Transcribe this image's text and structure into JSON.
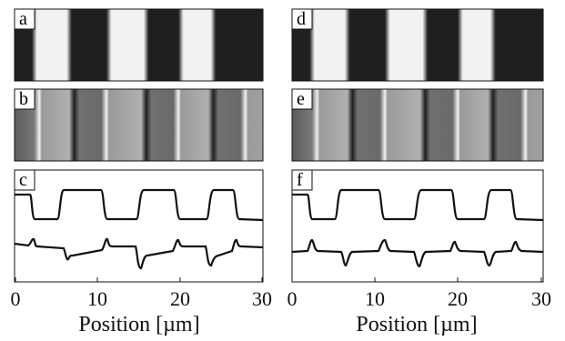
{
  "figure": {
    "panels": [
      {
        "letter": "a",
        "kind": "image-binary"
      },
      {
        "letter": "b",
        "kind": "image-gradient"
      },
      {
        "letter": "c",
        "kind": "profile-plot"
      },
      {
        "letter": "d",
        "kind": "image-binary"
      },
      {
        "letter": "e",
        "kind": "image-gradient"
      },
      {
        "letter": "f",
        "kind": "profile-plot"
      }
    ],
    "x_axis": {
      "label": "Position [µm]",
      "ticks": [
        "0",
        "10",
        "20",
        "30"
      ]
    }
  },
  "chart_data": [
    {
      "panel": "c",
      "type": "line",
      "xlabel": "Position [µm]",
      "ylabel": "",
      "xlim": [
        0,
        30
      ],
      "x_ticks": [
        0,
        10,
        20,
        30
      ],
      "y_ticks": [],
      "series": [
        {
          "values_note": "square-wave intensity profile",
          "x": [
            0,
            1.8,
            2.2,
            6.0,
            6.4,
            11.0,
            11.4,
            14.8,
            15.2,
            19.6,
            20.0,
            23.2,
            23.6,
            26.6,
            27.0,
            30
          ],
          "y": [
            0.78,
            0.78,
            0.38,
            0.38,
            0.9,
            0.9,
            0.38,
            0.38,
            0.9,
            0.9,
            0.38,
            0.38,
            0.9,
            0.9,
            0.38,
            0.38
          ]
        },
        {
          "values_note": "derivative-like edge profile",
          "x": [
            0,
            2.0,
            6.2,
            11.2,
            15.0,
            19.8,
            23.4,
            26.8,
            30
          ],
          "y": [
            0.12,
            0.22,
            -0.08,
            0.22,
            -0.08,
            0.22,
            -0.08,
            0.2,
            0.12
          ]
        }
      ]
    },
    {
      "panel": "f",
      "type": "line",
      "xlabel": "Position [µm]",
      "ylabel": "",
      "xlim": [
        0,
        30
      ],
      "x_ticks": [
        0,
        10,
        20,
        30
      ],
      "y_ticks": [],
      "series": [
        {
          "values_note": "square-wave intensity profile",
          "x": [
            0,
            1.8,
            2.2,
            6.0,
            6.4,
            11.0,
            11.4,
            14.8,
            15.2,
            19.6,
            20.0,
            23.2,
            23.6,
            26.6,
            27.0,
            30
          ],
          "y": [
            0.78,
            0.78,
            0.38,
            0.38,
            0.9,
            0.9,
            0.38,
            0.38,
            0.9,
            0.9,
            0.38,
            0.38,
            0.9,
            0.9,
            0.38,
            0.38
          ]
        },
        {
          "values_note": "symmetric spike profile",
          "x": [
            0,
            2.0,
            6.2,
            11.2,
            15.0,
            19.8,
            23.4,
            26.8,
            30
          ],
          "y": [
            0.12,
            0.2,
            -0.04,
            0.2,
            -0.04,
            0.2,
            -0.04,
            0.18,
            0.12
          ]
        }
      ]
    }
  ]
}
